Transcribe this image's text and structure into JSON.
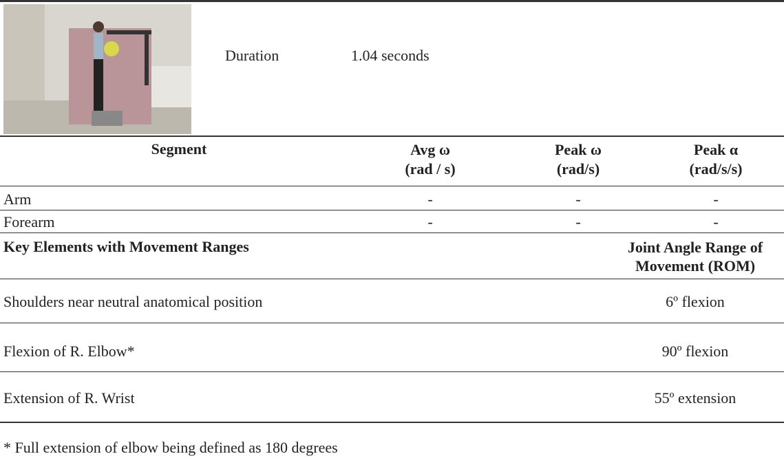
{
  "header": {
    "duration_label": "Duration",
    "duration_value": "1.04 seconds"
  },
  "table": {
    "columns": [
      [
        "Segment"
      ],
      [
        "Avg ω",
        "(rad / s)"
      ],
      [
        "Peak ω",
        "(rad/s)"
      ],
      [
        "Peak α",
        "(rad/s/s)"
      ]
    ],
    "rows": [
      [
        "Arm",
        "-",
        "-",
        "-"
      ],
      [
        "Forearm",
        "-",
        "-",
        "-"
      ]
    ]
  },
  "rom": {
    "headers": [
      "Key Elements with Movement Ranges",
      [
        "Joint Angle Range of",
        "Movement (ROM)"
      ]
    ],
    "rows": [
      [
        "Shoulders near neutral anatomical position",
        "6º flexion"
      ],
      [
        "Flexion of R. Elbow*",
        "90º flexion"
      ],
      [
        "Extension of R. Wrist",
        "55º extension"
      ]
    ]
  },
  "footnote": "* Full extension of elbow being defined as 180 degrees"
}
